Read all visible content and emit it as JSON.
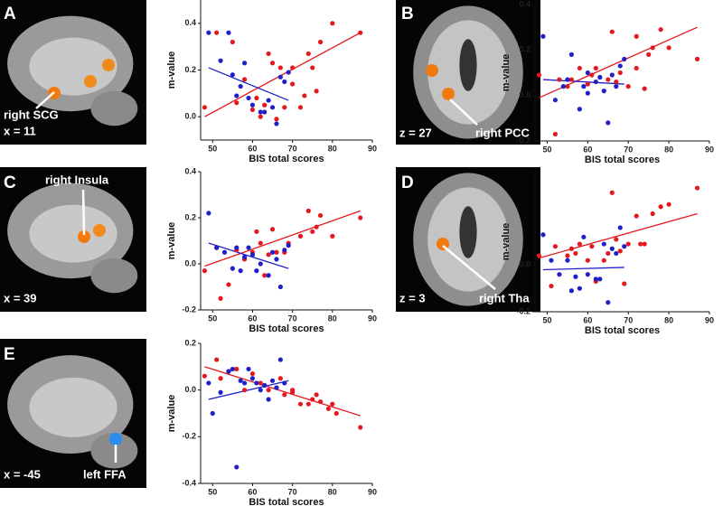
{
  "chart_data": [
    {
      "type": "scatter",
      "panel": "A",
      "slice": "x = 11",
      "region": "right SCG",
      "xlabel": "BIS total scores",
      "ylabel": "m-value",
      "xlim": [
        47,
        90
      ],
      "ylim": [
        -0.1,
        0.5
      ],
      "xticks": [
        50,
        60,
        70,
        80,
        90
      ],
      "yticks": [
        {
          "value": 0,
          "label": "0.0"
        },
        0.2,
        0.4
      ],
      "series": [
        {
          "color": "#e3191f",
          "x": [
            48,
            51,
            55,
            56,
            58,
            60,
            61,
            62,
            63,
            64,
            65,
            66,
            67,
            68,
            70,
            72,
            74,
            75,
            76,
            77,
            80,
            87,
            70,
            73
          ],
          "values": [
            0.04,
            0.36,
            0.32,
            0.06,
            0.16,
            0.03,
            0.08,
            0.0,
            0.05,
            0.27,
            0.23,
            -0.01,
            0.21,
            0.04,
            0.21,
            0.04,
            0.27,
            0.21,
            0.11,
            0.32,
            0.4,
            0.36,
            0.14,
            0.09
          ]
        },
        {
          "color": "#2020c8",
          "x": [
            49,
            52,
            54,
            55,
            56,
            57,
            58,
            59,
            60,
            62,
            64,
            65,
            66,
            67,
            68,
            69,
            63
          ],
          "values": [
            0.36,
            0.24,
            0.36,
            0.18,
            0.09,
            0.13,
            0.23,
            0.08,
            0.05,
            0.02,
            0.07,
            0.04,
            -0.03,
            0.17,
            0.15,
            0.19,
            0.02
          ]
        }
      ],
      "fits": [
        {
          "color": "#e3191f",
          "x": [
            48,
            87
          ],
          "values": [
            0.0,
            0.36
          ]
        },
        {
          "color": "#2020c8",
          "x": [
            49,
            69
          ],
          "values": [
            0.21,
            0.07
          ]
        }
      ]
    },
    {
      "type": "scatter",
      "panel": "B",
      "slice": "z = 27",
      "region": "right PCC",
      "xlabel": "BIS total scores",
      "ylabel": "m-value",
      "xlim": [
        47,
        90
      ],
      "ylim": [
        -0.2,
        0.4
      ],
      "xticks": [
        50,
        60,
        70,
        80,
        90
      ],
      "yticks": [
        -0.2,
        {
          "value": 0,
          "label": "0.0"
        },
        0.2,
        0.4
      ],
      "series": [
        {
          "color": "#e3191f",
          "x": [
            48,
            52,
            53,
            55,
            56,
            58,
            60,
            61,
            62,
            63,
            65,
            66,
            67,
            68,
            72,
            72,
            74,
            75,
            76,
            78,
            80,
            87,
            70
          ],
          "values": [
            0.09,
            -0.17,
            0.07,
            0.04,
            0.07,
            0.12,
            0.05,
            0.09,
            0.12,
            0.08,
            0.07,
            0.28,
            0.06,
            0.1,
            0.26,
            0.12,
            0.03,
            0.18,
            0.21,
            0.29,
            0.21,
            0.16,
            0.04
          ]
        },
        {
          "color": "#2020c8",
          "x": [
            49,
            52,
            54,
            55,
            56,
            58,
            59,
            60,
            62,
            63,
            64,
            65,
            66,
            67,
            68,
            69,
            60
          ],
          "values": [
            0.26,
            -0.02,
            0.04,
            0.07,
            0.18,
            -0.06,
            0.04,
            0.1,
            0.06,
            0.08,
            0.02,
            -0.12,
            0.09,
            0.04,
            0.13,
            0.16,
            0.01
          ]
        }
      ],
      "fits": [
        {
          "color": "#e3191f",
          "x": [
            48,
            87
          ],
          "values": [
            -0.01,
            0.3
          ]
        },
        {
          "color": "#2020c8",
          "x": [
            49,
            69
          ],
          "values": [
            0.07,
            0.05
          ]
        }
      ]
    },
    {
      "type": "scatter",
      "panel": "C",
      "slice": "x = 39",
      "region": "right Insula",
      "xlabel": "BIS total scores",
      "ylabel": "m-value",
      "xlim": [
        47,
        90
      ],
      "ylim": [
        -0.2,
        0.4
      ],
      "xticks": [
        50,
        60,
        70,
        80,
        90
      ],
      "yticks": [
        -0.2,
        {
          "value": 0,
          "label": "0.0"
        },
        0.2,
        0.4
      ],
      "series": [
        {
          "color": "#e3191f",
          "x": [
            48,
            51,
            52,
            54,
            56,
            58,
            60,
            61,
            62,
            63,
            64,
            65,
            66,
            68,
            69,
            74,
            75,
            76,
            77,
            80,
            87,
            72
          ],
          "values": [
            -0.03,
            0.07,
            -0.15,
            -0.09,
            0.06,
            0.02,
            0.05,
            0.14,
            0.09,
            -0.05,
            0.04,
            0.15,
            0.05,
            0.05,
            0.09,
            0.23,
            0.14,
            0.16,
            0.21,
            0.12,
            0.2,
            0.12
          ]
        },
        {
          "color": "#2020c8",
          "x": [
            49,
            51,
            53,
            55,
            56,
            57,
            58,
            59,
            61,
            62,
            64,
            65,
            66,
            67,
            68,
            69,
            60
          ],
          "values": [
            0.22,
            0.07,
            0.05,
            -0.02,
            0.07,
            -0.03,
            0.03,
            0.07,
            -0.03,
            0.0,
            -0.05,
            0.05,
            0.02,
            -0.1,
            0.06,
            0.08,
            0.04
          ]
        }
      ],
      "fits": [
        {
          "color": "#e3191f",
          "x": [
            48,
            87
          ],
          "values": [
            -0.01,
            0.23
          ]
        },
        {
          "color": "#2020c8",
          "x": [
            49,
            69
          ],
          "values": [
            0.09,
            -0.02
          ]
        }
      ]
    },
    {
      "type": "scatter",
      "panel": "D",
      "slice": "z = 3",
      "region": "right Tha",
      "xlabel": "BIS total scores",
      "ylabel": "m-value",
      "xlim": [
        47,
        90
      ],
      "ylim": [
        -0.2,
        0.4
      ],
      "xticks": [
        50,
        60,
        70,
        80,
        90
      ],
      "yticks": [
        -0.2,
        {
          "value": 0,
          "label": "0.0"
        }
      ],
      "series": [
        {
          "color": "#e3191f",
          "x": [
            48,
            51,
            52,
            55,
            56,
            57,
            58,
            60,
            61,
            62,
            64,
            65,
            66,
            67,
            68,
            70,
            72,
            73,
            74,
            76,
            78,
            80,
            87,
            69
          ],
          "values": [
            0.04,
            -0.09,
            0.08,
            0.04,
            0.07,
            0.05,
            0.09,
            0.02,
            0.08,
            -0.07,
            0.02,
            0.05,
            0.31,
            0.11,
            0.06,
            0.09,
            0.21,
            0.09,
            0.09,
            0.22,
            0.25,
            0.26,
            0.33,
            -0.08
          ]
        },
        {
          "color": "#2020c8",
          "x": [
            49,
            51,
            53,
            55,
            56,
            57,
            58,
            59,
            60,
            62,
            63,
            64,
            65,
            66,
            67,
            68,
            69
          ],
          "values": [
            0.13,
            0.02,
            -0.04,
            0.02,
            -0.11,
            -0.05,
            -0.1,
            0.12,
            -0.04,
            -0.06,
            -0.06,
            0.09,
            -0.16,
            0.07,
            0.05,
            0.16,
            0.08
          ]
        }
      ],
      "fits": [
        {
          "color": "#e3191f",
          "x": [
            48,
            87
          ],
          "values": [
            0.03,
            0.22
          ]
        },
        {
          "color": "#2020c8",
          "x": [
            49,
            69
          ],
          "values": [
            -0.02,
            -0.01
          ]
        }
      ]
    },
    {
      "type": "scatter",
      "panel": "E",
      "slice": "x = -45",
      "region": "left FFA",
      "xlabel": "BIS total scores",
      "ylabel": "m-value",
      "xlim": [
        47,
        90
      ],
      "ylim": [
        -0.4,
        0.2
      ],
      "xticks": [
        50,
        60,
        70,
        80,
        90
      ],
      "yticks": [
        -0.4,
        -0.2,
        {
          "value": 0,
          "label": "0.0"
        },
        0.2
      ],
      "series": [
        {
          "color": "#e3191f",
          "x": [
            48,
            51,
            52,
            54,
            56,
            58,
            60,
            62,
            63,
            64,
            66,
            67,
            68,
            70,
            72,
            74,
            75,
            76,
            77,
            79,
            80,
            81,
            87,
            70
          ],
          "values": [
            0.06,
            0.13,
            0.05,
            0.08,
            0.09,
            0.0,
            0.07,
            0.03,
            0.02,
            0.0,
            0.01,
            0.05,
            -0.02,
            0.0,
            -0.06,
            -0.06,
            -0.04,
            -0.02,
            -0.05,
            -0.08,
            -0.06,
            -0.1,
            -0.16,
            -0.01
          ]
        },
        {
          "color": "#2020c8",
          "x": [
            49,
            50,
            52,
            54,
            55,
            56,
            57,
            58,
            59,
            60,
            61,
            62,
            63,
            64,
            65,
            66,
            67,
            68
          ],
          "values": [
            0.03,
            -0.1,
            -0.01,
            0.08,
            0.09,
            -0.33,
            0.04,
            0.03,
            0.09,
            0.05,
            0.03,
            0.0,
            0.02,
            -0.04,
            0.04,
            0.01,
            0.13,
            0.03
          ]
        }
      ],
      "fits": [
        {
          "color": "#e3191f",
          "x": [
            48,
            87
          ],
          "values": [
            0.1,
            -0.11
          ]
        },
        {
          "color": "#2020c8",
          "x": [
            49,
            69
          ],
          "values": [
            -0.04,
            0.04
          ]
        }
      ]
    }
  ]
}
